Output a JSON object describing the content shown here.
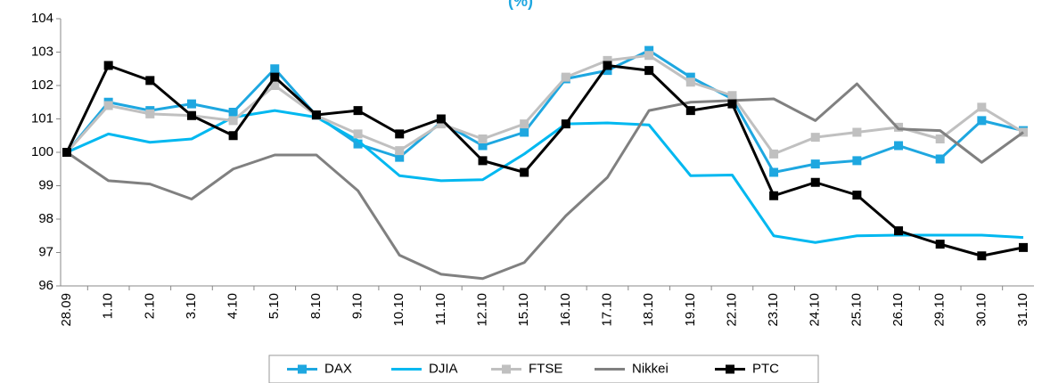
{
  "chart_data": {
    "type": "line",
    "title": "(%)",
    "categories": [
      "28.09",
      "1.10",
      "2.10",
      "3.10",
      "4.10",
      "5.10",
      "8.10",
      "9.10",
      "10.10",
      "11.10",
      "12.10",
      "15.10",
      "16.10",
      "17.10",
      "18.10",
      "19.10",
      "22.10",
      "23.10",
      "24.10",
      "25.10",
      "26.10",
      "29.10",
      "30.10",
      "31.10"
    ],
    "series": [
      {
        "name": "DAX",
        "color": "#1ea7e0",
        "markers": true,
        "values": [
          100,
          101.5,
          101.25,
          101.45,
          101.2,
          102.5,
          101.1,
          100.25,
          99.85,
          100.9,
          100.2,
          100.6,
          102.2,
          102.45,
          103.05,
          102.25,
          101.6,
          99.4,
          99.65,
          99.75,
          100.2,
          99.8,
          100.95,
          100.65
        ]
      },
      {
        "name": "DJIA",
        "color": "#00b8f0",
        "markers": false,
        "values": [
          100,
          100.55,
          100.3,
          100.4,
          101.05,
          101.25,
          101.05,
          100.35,
          99.3,
          99.15,
          99.18,
          99.95,
          100.85,
          100.88,
          100.82,
          99.3,
          99.32,
          97.5,
          97.3,
          97.5,
          97.52,
          97.52,
          97.52,
          97.45
        ]
      },
      {
        "name": "FTSE",
        "color": "#c0c0c0",
        "markers": true,
        "values": [
          100,
          101.4,
          101.15,
          101.1,
          100.95,
          102.0,
          101.1,
          100.55,
          100.05,
          100.85,
          100.4,
          100.85,
          102.25,
          102.75,
          102.9,
          102.1,
          101.7,
          99.95,
          100.45,
          100.6,
          100.75,
          100.4,
          101.35,
          100.6
        ]
      },
      {
        "name": "Nikkei",
        "color": "#808080",
        "markers": false,
        "values": [
          100,
          99.15,
          99.05,
          98.6,
          99.5,
          99.92,
          99.92,
          98.85,
          96.92,
          96.35,
          96.22,
          96.7,
          98.1,
          99.25,
          101.25,
          101.5,
          101.55,
          101.6,
          100.95,
          102.05,
          100.7,
          100.65,
          99.7,
          100.6
        ]
      },
      {
        "name": "PTC",
        "color": "#000000",
        "markers": true,
        "values": [
          100,
          102.6,
          102.15,
          101.1,
          100.5,
          102.25,
          101.12,
          101.25,
          100.55,
          101.0,
          99.75,
          99.4,
          100.85,
          102.6,
          102.45,
          101.25,
          101.45,
          98.7,
          99.1,
          98.72,
          97.65,
          97.25,
          96.9,
          97.15
        ]
      }
    ],
    "ylim": [
      96,
      104
    ],
    "yticks": [
      96,
      97,
      98,
      99,
      100,
      101,
      102,
      103,
      104
    ],
    "grid": false,
    "legend": "bottom"
  }
}
